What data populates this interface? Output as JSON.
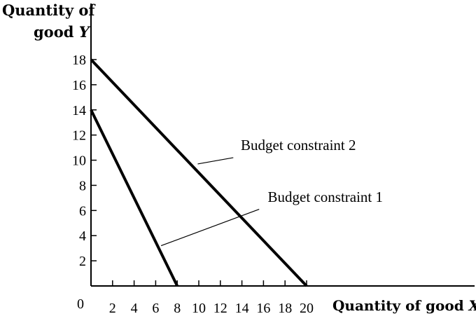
{
  "chart_data": {
    "type": "line",
    "ylabel_line1": "Quantity of",
    "ylabel_line2_prefix": "good ",
    "ylabel_line2_var": "Y",
    "xlabel_prefix": "Quantity of  good ",
    "xlabel_var": "X",
    "origin_label": "0",
    "xlim": [
      0,
      20
    ],
    "ylim": [
      0,
      18
    ],
    "x_ticks": [
      2,
      4,
      6,
      8,
      10,
      12,
      14,
      16,
      18,
      20
    ],
    "y_ticks": [
      2,
      4,
      6,
      8,
      10,
      12,
      14,
      16,
      18
    ],
    "series": [
      {
        "name": "Budget constraint 1",
        "points": [
          [
            0,
            14
          ],
          [
            8,
            0
          ]
        ]
      },
      {
        "name": "Budget constraint 2",
        "points": [
          [
            0,
            18
          ],
          [
            20,
            0
          ]
        ]
      }
    ],
    "annotations": [
      {
        "text": "Budget constraint 2",
        "text_at": [
          13.9,
          10.8
        ],
        "pointer_from": [
          13.2,
          10.2
        ],
        "pointer_to": [
          9.9,
          9.7
        ]
      },
      {
        "text": "Budget constraint 1",
        "text_at": [
          16.4,
          6.7
        ],
        "pointer_from": [
          15.6,
          6.1
        ],
        "pointer_to": [
          6.5,
          3.2
        ]
      }
    ]
  }
}
